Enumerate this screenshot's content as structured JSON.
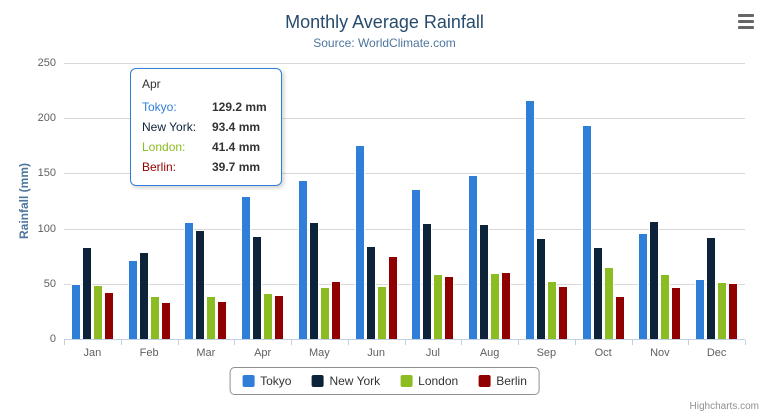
{
  "chart_data": {
    "type": "bar",
    "title": "Monthly Average Rainfall",
    "subtitle": "Source: WorldClimate.com",
    "xlabel": "",
    "ylabel": "Rainfall (mm)",
    "ylim": [
      0,
      250
    ],
    "yticks": [
      0,
      50,
      100,
      150,
      200,
      250
    ],
    "grid": true,
    "legend_position": "bottom",
    "categories": [
      "Jan",
      "Feb",
      "Mar",
      "Apr",
      "May",
      "Jun",
      "Jul",
      "Aug",
      "Sep",
      "Oct",
      "Nov",
      "Dec"
    ],
    "series": [
      {
        "name": "Tokyo",
        "color": "#2f7ed8",
        "values": [
          49.9,
          71.5,
          106.4,
          129.2,
          144.0,
          176.0,
          135.6,
          148.5,
          216.4,
          194.1,
          95.6,
          54.4
        ]
      },
      {
        "name": "New York",
        "color": "#0d233a",
        "values": [
          83.6,
          78.8,
          98.5,
          93.4,
          106.0,
          84.5,
          105.0,
          104.3,
          91.2,
          83.5,
          106.6,
          92.3
        ]
      },
      {
        "name": "London",
        "color": "#8bbc21",
        "values": [
          48.9,
          38.8,
          39.3,
          41.4,
          47.0,
          48.3,
          59.0,
          59.6,
          52.4,
          65.2,
          59.3,
          51.2
        ]
      },
      {
        "name": "Berlin",
        "color": "#910000",
        "values": [
          42.4,
          33.2,
          34.5,
          39.7,
          52.6,
          75.5,
          57.4,
          60.4,
          47.6,
          39.1,
          46.8,
          51.1
        ]
      }
    ]
  },
  "tooltip": {
    "header": "Apr",
    "rows": [
      {
        "label": "Tokyo:",
        "value": "129.2 mm",
        "color": "#2f7ed8"
      },
      {
        "label": "New York:",
        "value": "93.4 mm",
        "color": "#0d233a"
      },
      {
        "label": "London:",
        "value": "41.4 mm",
        "color": "#8bbc21"
      },
      {
        "label": "Berlin:",
        "value": "39.7 mm",
        "color": "#910000"
      }
    ]
  },
  "credits": "Highcharts.com",
  "icons": {
    "export_menu": "hamburger-icon"
  }
}
